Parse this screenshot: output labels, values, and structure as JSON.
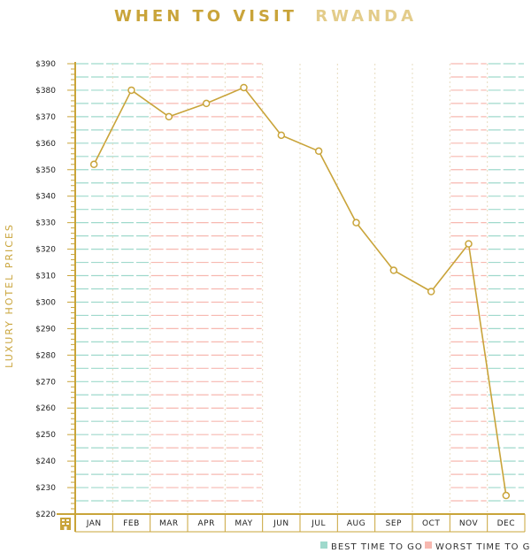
{
  "chart_data": {
    "type": "line",
    "title_part1": "WHEN TO VISIT",
    "title_part2": "RWANDA",
    "xlabel": "",
    "ylabel": "LUXURY HOTEL PRICES",
    "categories": [
      "JAN",
      "FEB",
      "MAR",
      "APR",
      "MAY",
      "JUN",
      "JUL",
      "AUG",
      "SEP",
      "OCT",
      "NOV",
      "DEC"
    ],
    "values": [
      352,
      380,
      370,
      375,
      381,
      363,
      357,
      330,
      312,
      304,
      322,
      227
    ],
    "ylim": [
      220,
      390
    ],
    "yticks": [
      220,
      230,
      240,
      250,
      260,
      270,
      280,
      290,
      300,
      310,
      320,
      330,
      340,
      350,
      360,
      370,
      380,
      390
    ],
    "ytick_prefix": "$",
    "best_months": [
      "JAN",
      "FEB",
      "DEC"
    ],
    "worst_months": [
      "MAR",
      "APR",
      "MAY",
      "NOV"
    ],
    "legend": {
      "best_label": "BEST TIME TO GO",
      "worst_label": "WORST TIME TO GO",
      "position": "bottom-right"
    },
    "colors": {
      "accent": "#c9a43a",
      "title_light": "#e3cc8a",
      "line": "#c9a43a",
      "best": "#9fd9cc",
      "worst": "#f7b8b0",
      "grid": "#e7dcc0"
    }
  }
}
